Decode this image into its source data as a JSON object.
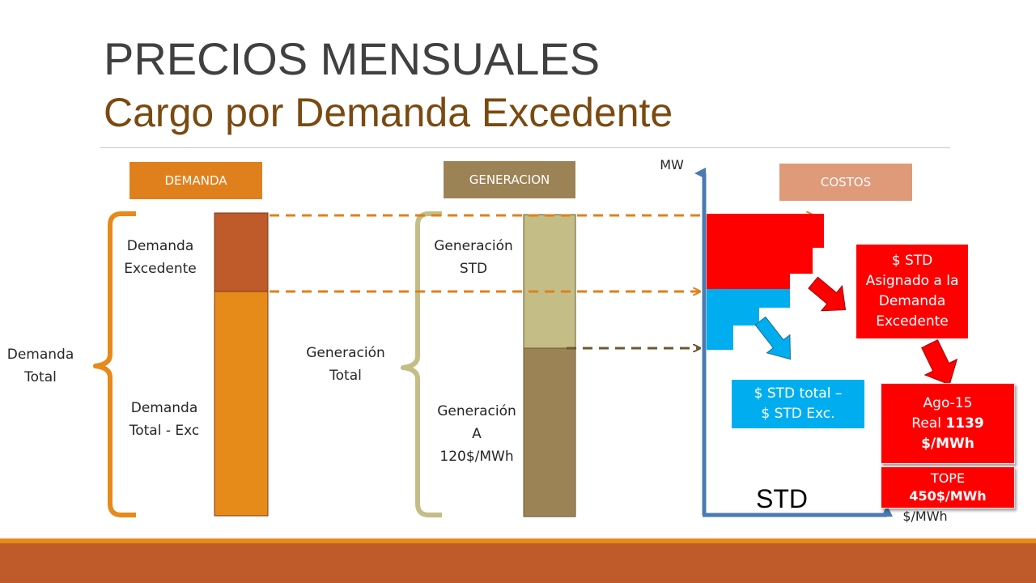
{
  "title": {
    "line1": "PRECIOS MENSUALES",
    "line2": "Cargo por Demanda Excedente"
  },
  "headers": {
    "demanda": "DEMANDA",
    "generacion": "GENERACION",
    "costos": "COSTOS"
  },
  "demanda": {
    "excedente": [
      "Demanda",
      "Excedente"
    ],
    "total_exc": [
      "Demanda",
      "Total - Exc"
    ],
    "total": [
      "Demanda",
      "Total"
    ]
  },
  "generacion": {
    "std": [
      "Generación",
      "STD"
    ],
    "a": [
      "Generación",
      "A",
      "120$/MWh"
    ],
    "total": [
      "Generación",
      "Total"
    ]
  },
  "axis": {
    "y_label": "MW",
    "x_label": "$/MWh",
    "std_label": "STD"
  },
  "boxes": {
    "std_asignado": [
      "$ STD",
      "Asignado a la",
      "Demanda",
      "Excedente"
    ],
    "std_total": [
      "$ STD total –",
      "$ STD Exc."
    ],
    "ago": {
      "month": "Ago-15",
      "real_prefix": "Real ",
      "real_value": "1139",
      "unit": "$/MWh"
    },
    "tope": {
      "label": "TOPE",
      "value": "450$/MWh"
    }
  },
  "colors": {
    "demanda_header": "#e0801c",
    "generacion_header": "#9c8356",
    "costos_header": "#df9a7a",
    "demanda_excedente": "#bf5a2b",
    "demanda_base": "#e68a1a",
    "gen_std": "#c4bd86",
    "gen_a": "#9c8356",
    "cost_red": "#ff0000",
    "cost_blue": "#00aeef",
    "axis": "#4a7bb0",
    "footer": "#bf5a2b"
  }
}
